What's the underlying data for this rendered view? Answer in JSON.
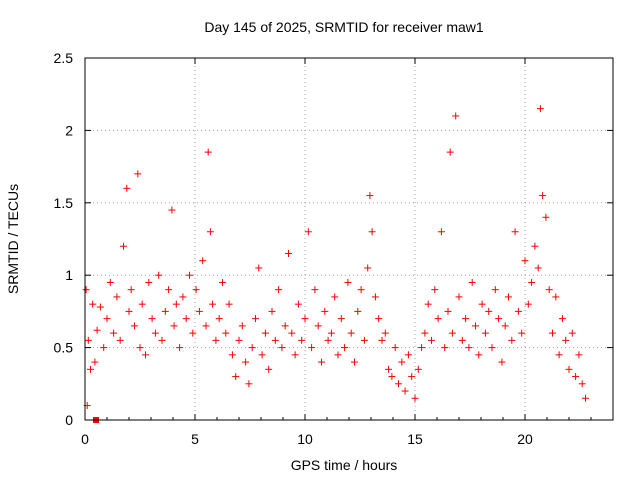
{
  "chart_data": {
    "type": "scatter",
    "title": "Day 145 of 2025, SRMTID for receiver maw1",
    "xlabel": "GPS time / hours",
    "ylabel": "SRMTID / TECUs",
    "xlim": [
      0,
      24
    ],
    "ylim": [
      0,
      2.5
    ],
    "xticks": [
      0,
      5,
      10,
      15,
      20
    ],
    "xtick_labels": [
      "0",
      "5",
      "10",
      "15",
      "20"
    ],
    "yticks": [
      0,
      0.5,
      1,
      1.5,
      2,
      2.5
    ],
    "ytick_labels": [
      "0",
      "0.5",
      "1",
      "1.5",
      "2",
      "2.5"
    ],
    "grid": true,
    "marker": "plus",
    "color": "#ff0000",
    "series": [
      {
        "name": "SRMTID",
        "x": [
          0.05,
          0.1,
          0.15,
          0.25,
          0.35,
          0.45,
          0.55,
          0.7,
          0.85,
          1.0,
          1.15,
          1.3,
          1.45,
          1.6,
          1.75,
          1.9,
          2.0,
          2.1,
          2.25,
          2.4,
          2.5,
          2.6,
          2.75,
          2.9,
          3.05,
          3.2,
          3.35,
          3.5,
          3.65,
          3.8,
          3.95,
          4.05,
          4.15,
          4.3,
          4.45,
          4.6,
          4.75,
          4.9,
          5.05,
          5.2,
          5.35,
          5.5,
          5.6,
          5.7,
          5.8,
          5.95,
          6.1,
          6.25,
          6.4,
          6.55,
          6.7,
          6.85,
          7.0,
          7.15,
          7.3,
          7.45,
          7.6,
          7.75,
          7.9,
          8.05,
          8.2,
          8.35,
          8.5,
          8.65,
          8.8,
          8.95,
          9.1,
          9.25,
          9.4,
          9.55,
          9.7,
          9.85,
          10.0,
          10.15,
          10.3,
          10.45,
          10.6,
          10.75,
          10.9,
          11.05,
          11.2,
          11.35,
          11.5,
          11.65,
          11.8,
          11.95,
          12.1,
          12.25,
          12.4,
          12.55,
          12.7,
          12.85,
          12.95,
          13.05,
          13.2,
          13.35,
          13.5,
          13.65,
          13.8,
          13.95,
          14.1,
          14.25,
          14.4,
          14.55,
          14.7,
          14.85,
          15.0,
          15.15,
          15.3,
          15.45,
          15.6,
          15.75,
          15.9,
          16.05,
          16.2,
          16.35,
          16.5,
          16.6,
          16.7,
          16.85,
          17.0,
          17.15,
          17.3,
          17.45,
          17.6,
          17.75,
          17.9,
          18.05,
          18.2,
          18.35,
          18.5,
          18.65,
          18.8,
          18.95,
          19.1,
          19.25,
          19.4,
          19.55,
          19.7,
          19.85,
          20.0,
          20.15,
          20.3,
          20.45,
          20.6,
          20.7,
          20.8,
          20.95,
          21.1,
          21.25,
          21.4,
          21.55,
          21.7,
          21.85,
          22.0,
          22.15,
          22.3,
          22.45,
          22.6,
          22.75
        ],
        "values": [
          0.9,
          0.1,
          0.55,
          0.35,
          0.8,
          0.4,
          0.62,
          0.78,
          0.5,
          0.7,
          0.95,
          0.6,
          0.85,
          0.55,
          1.2,
          1.6,
          0.75,
          0.9,
          0.65,
          1.7,
          0.5,
          0.8,
          0.45,
          0.95,
          0.7,
          0.6,
          1.0,
          0.55,
          0.75,
          0.9,
          1.45,
          0.65,
          0.8,
          0.5,
          0.85,
          0.7,
          1.0,
          0.6,
          0.9,
          0.75,
          1.1,
          0.65,
          1.85,
          1.3,
          0.8,
          0.55,
          0.7,
          0.95,
          0.6,
          0.8,
          0.45,
          0.3,
          0.55,
          0.65,
          0.4,
          0.25,
          0.5,
          0.7,
          1.05,
          0.45,
          0.6,
          0.35,
          0.75,
          0.55,
          0.9,
          0.5,
          0.65,
          1.15,
          0.6,
          0.45,
          0.8,
          0.55,
          0.7,
          1.3,
          0.5,
          0.9,
          0.65,
          0.4,
          0.75,
          0.55,
          0.6,
          0.85,
          0.45,
          0.7,
          0.5,
          0.95,
          0.6,
          0.4,
          0.75,
          0.9,
          0.55,
          1.05,
          1.55,
          1.3,
          0.85,
          0.7,
          0.55,
          0.6,
          0.35,
          0.3,
          0.5,
          0.25,
          0.4,
          0.2,
          0.45,
          0.3,
          0.15,
          0.35,
          0.5,
          0.6,
          0.8,
          0.55,
          0.9,
          0.7,
          1.3,
          0.5,
          0.75,
          1.85,
          0.6,
          2.1,
          0.85,
          0.55,
          0.7,
          0.5,
          0.95,
          0.65,
          0.45,
          0.8,
          0.6,
          0.75,
          0.5,
          0.9,
          0.7,
          0.4,
          0.65,
          0.85,
          0.55,
          1.3,
          0.75,
          0.6,
          1.1,
          0.8,
          0.95,
          1.2,
          1.05,
          2.15,
          1.55,
          1.4,
          0.9,
          0.6,
          0.85,
          0.45,
          0.7,
          0.55,
          0.35,
          0.6,
          0.3,
          0.45,
          0.25,
          0.15
        ],
        "outlier": {
          "x": 0.5,
          "value": 0.0
        }
      }
    ]
  }
}
